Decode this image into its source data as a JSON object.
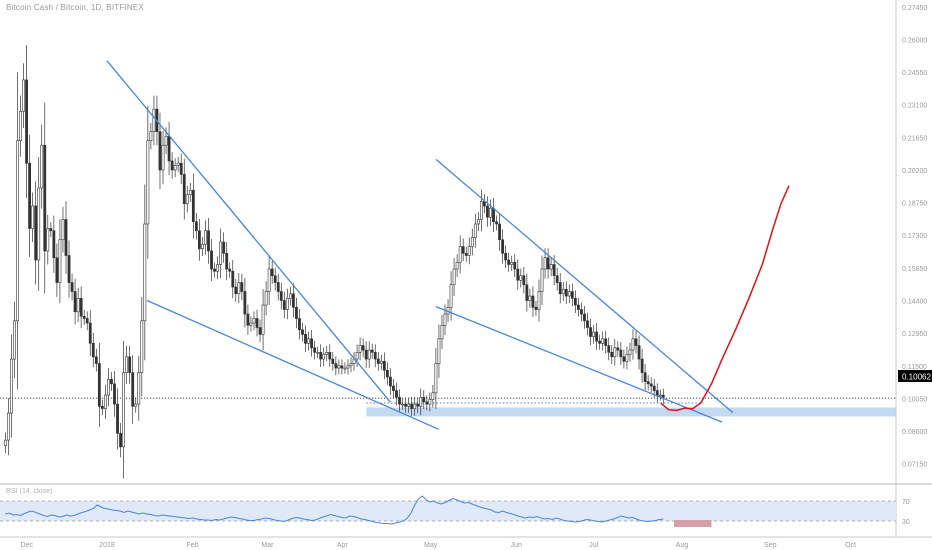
{
  "chart_header": {
    "title": "Bitcoin Cash / Bitcoin, 1D, BITFINEX"
  },
  "rsi_label": "RSI (14, close)",
  "colors": {
    "up": "#333333",
    "down": "#333333",
    "trendline": "#4a86d4",
    "projection": "#e0121b",
    "zone": "#b8d2ee",
    "rsi_line": "#4a86d4",
    "rsi_band": "#dfe9f7",
    "rsi_marker": "#d4a0a8",
    "price_tag_bg": "#000000",
    "price_tag_text": "#ffffff",
    "dotted_current": "#333333",
    "dotted_support": "#4a86d4"
  },
  "chart_data": {
    "type": "candlestick",
    "title": "Bitcoin Cash / Bitcoin, 1D, BITFINEX",
    "price_scale": {
      "min": 0.0625,
      "max": 0.2775,
      "ticks": [
        "0.27450",
        "0.26000",
        "0.24550",
        "0.23100",
        "0.21650",
        "0.20200",
        "0.18750",
        "0.17300",
        "0.15850",
        "0.14400",
        "0.12950",
        "0.11500",
        "0.10050",
        "0.08600",
        "0.07150"
      ],
      "tick_values": [
        0.2745,
        0.26,
        0.2455,
        0.231,
        0.2165,
        0.202,
        0.1875,
        0.173,
        0.1585,
        0.144,
        0.1295,
        0.115,
        0.1005,
        0.086,
        0.0715
      ]
    },
    "time_scale": {
      "labels": [
        "Dec",
        "2018",
        "Feb",
        "Mar",
        "Apr",
        "May",
        "Jun",
        "Jul",
        "Aug",
        "Sep",
        "Oct"
      ],
      "label_days": [
        10,
        40,
        72,
        100,
        128,
        161,
        193,
        222,
        255,
        288,
        318
      ]
    },
    "current_price": "0.10062",
    "current_price_value": 0.10062,
    "support_zone": {
      "from_day": 137,
      "low": 0.0925,
      "high": 0.0965
    },
    "support_line_value": 0.0985,
    "support_line_days": [
      137,
      263
    ],
    "trendlines": [
      {
        "name": "wedge-1-upper",
        "points": [
          [
            40,
            0.2505
          ],
          [
            146,
            0.0988
          ]
        ]
      },
      {
        "name": "wedge-1-lower",
        "points": [
          [
            55,
            0.144
          ],
          [
            164,
            0.0868
          ]
        ]
      },
      {
        "name": "wedge-2-upper",
        "points": [
          [
            163,
            0.2067
          ],
          [
            274,
            0.0942
          ]
        ]
      },
      {
        "name": "wedge-2-lower",
        "points": [
          [
            163,
            0.1413
          ],
          [
            270,
            0.09
          ]
        ]
      }
    ],
    "projection": [
      [
        247,
        0.0985
      ],
      [
        250,
        0.0955
      ],
      [
        253,
        0.0952
      ],
      [
        256,
        0.0962
      ],
      [
        259,
        0.096
      ],
      [
        262,
        0.0985
      ],
      [
        266,
        0.107
      ],
      [
        270,
        0.118
      ],
      [
        275,
        0.131
      ],
      [
        280,
        0.145
      ],
      [
        285,
        0.16
      ],
      [
        289,
        0.176
      ],
      [
        292,
        0.187
      ],
      [
        295,
        0.195
      ]
    ],
    "candles_close": [
      0.082,
      0.094,
      0.118,
      0.135,
      0.215,
      0.228,
      0.242,
      0.205,
      0.176,
      0.186,
      0.162,
      0.194,
      0.213,
      0.166,
      0.176,
      0.175,
      0.163,
      0.152,
      0.171,
      0.18,
      0.164,
      0.152,
      0.148,
      0.139,
      0.145,
      0.137,
      0.136,
      0.134,
      0.125,
      0.119,
      0.116,
      0.097,
      0.096,
      0.102,
      0.109,
      0.107,
      0.098,
      0.085,
      0.079,
      0.112,
      0.119,
      0.112,
      0.097,
      0.098,
      0.112,
      0.135,
      0.178,
      0.215,
      0.219,
      0.229,
      0.219,
      0.202,
      0.213,
      0.217,
      0.206,
      0.202,
      0.204,
      0.205,
      0.2,
      0.187,
      0.191,
      0.193,
      0.179,
      0.175,
      0.167,
      0.169,
      0.175,
      0.166,
      0.158,
      0.157,
      0.16,
      0.17,
      0.165,
      0.158,
      0.157,
      0.15,
      0.147,
      0.152,
      0.148,
      0.138,
      0.133,
      0.134,
      0.136,
      0.132,
      0.129,
      0.142,
      0.148,
      0.158,
      0.155,
      0.152,
      0.148,
      0.144,
      0.14,
      0.145,
      0.147,
      0.141,
      0.136,
      0.131,
      0.129,
      0.125,
      0.127,
      0.123,
      0.121,
      0.121,
      0.118,
      0.12,
      0.121,
      0.118,
      0.116,
      0.114,
      0.115,
      0.114,
      0.114,
      0.115,
      0.116,
      0.118,
      0.121,
      0.124,
      0.122,
      0.118,
      0.122,
      0.121,
      0.118,
      0.116,
      0.117,
      0.113,
      0.11,
      0.106,
      0.104,
      0.101,
      0.098,
      0.098,
      0.097,
      0.098,
      0.096,
      0.098,
      0.097,
      0.101,
      0.099,
      0.098,
      0.1,
      0.103,
      0.116,
      0.127,
      0.133,
      0.138,
      0.141,
      0.151,
      0.158,
      0.161,
      0.168,
      0.165,
      0.164,
      0.168,
      0.172,
      0.178,
      0.18,
      0.188,
      0.186,
      0.181,
      0.185,
      0.179,
      0.178,
      0.171,
      0.165,
      0.162,
      0.16,
      0.161,
      0.158,
      0.153,
      0.155,
      0.151,
      0.144,
      0.146,
      0.141,
      0.14,
      0.148,
      0.158,
      0.163,
      0.158,
      0.16,
      0.155,
      0.152,
      0.147,
      0.149,
      0.146,
      0.148,
      0.145,
      0.142,
      0.14,
      0.138,
      0.135,
      0.132,
      0.128,
      0.13,
      0.126,
      0.125,
      0.127,
      0.124,
      0.121,
      0.119,
      0.123,
      0.122,
      0.119,
      0.117,
      0.12,
      0.122,
      0.127,
      0.124,
      0.118,
      0.112,
      0.108,
      0.107,
      0.106,
      0.104,
      0.102,
      0.102,
      0.101
    ],
    "rsi": {
      "upper_band": 70,
      "lower_band": 30,
      "range": [
        0,
        100
      ],
      "values": [
        44,
        46,
        42,
        43,
        41,
        45,
        48,
        50,
        47,
        44,
        41,
        39,
        42,
        41,
        38,
        39,
        42,
        40,
        41,
        44,
        47,
        49,
        52,
        55,
        62,
        58,
        55,
        54,
        52,
        51,
        50,
        47,
        50,
        48,
        46,
        44,
        46,
        44,
        43,
        41,
        40,
        42,
        41,
        40,
        39,
        38,
        37,
        36,
        35,
        36,
        34,
        33,
        32,
        32,
        31,
        33,
        32,
        34,
        36,
        38,
        37,
        35,
        34,
        32,
        31,
        31,
        33,
        34,
        36,
        35,
        33,
        31,
        30,
        29,
        32,
        35,
        37,
        36,
        34,
        33,
        31,
        32,
        35,
        38,
        40,
        43,
        41,
        39,
        37,
        36,
        40,
        39,
        37,
        34,
        33,
        31,
        29,
        27,
        26,
        25,
        25,
        24,
        26,
        28,
        30,
        35,
        45,
        62,
        74,
        80,
        72,
        68,
        70,
        66,
        64,
        67,
        71,
        75,
        72,
        69,
        66,
        67,
        64,
        61,
        58,
        56,
        54,
        52,
        48,
        47,
        50,
        47,
        45,
        43,
        40,
        38,
        36,
        38,
        37,
        39,
        36,
        34,
        35,
        33,
        36,
        34,
        31,
        30,
        29,
        28,
        29,
        31,
        33,
        32,
        30,
        29,
        28,
        30,
        32,
        34,
        37,
        40,
        38,
        36,
        37,
        34,
        31,
        30,
        29,
        30,
        31,
        33,
        34
      ]
    },
    "rsi_marker": {
      "from_day": 252,
      "to_day": 266
    }
  }
}
